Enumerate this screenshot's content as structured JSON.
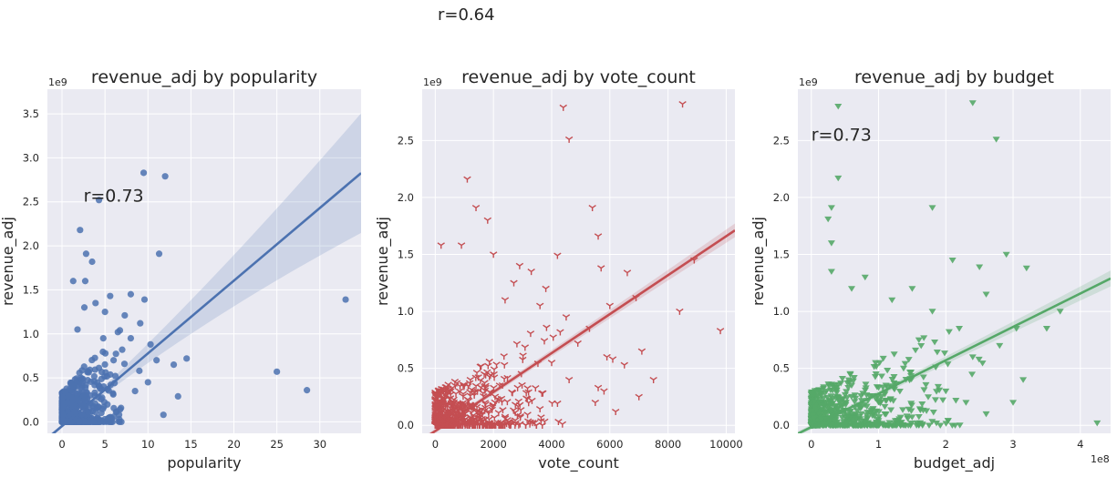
{
  "figure": {
    "suptitle": "r=0.64"
  },
  "chart_data": [
    {
      "type": "scatter",
      "title": "revenue_adj by popularity",
      "xlabel": "popularity",
      "ylabel": "revenue_adj",
      "x_offset_label": "",
      "y_offset_label": "1e9",
      "annotation": "r=0.73",
      "xlim": [
        -1.7,
        34.8
      ],
      "ylim": [
        -0.13,
        3.78
      ],
      "x_ticks": [
        0,
        5,
        10,
        15,
        20,
        25,
        30
      ],
      "y_ticks": [
        0.0,
        0.5,
        1.0,
        1.5,
        2.0,
        2.5,
        3.0,
        3.5
      ],
      "x_tick_labels": [
        "0",
        "5",
        "10",
        "15",
        "20",
        "25",
        "30"
      ],
      "y_tick_labels": [
        "0.0",
        "0.5",
        "1.0",
        "1.5",
        "2.0",
        "2.5",
        "3.0",
        "3.5"
      ],
      "marker": "circle",
      "color": "#4c72b0",
      "grid": true,
      "regression": {
        "slope": 0.0826,
        "intercept": -0.0475,
        "ci_start": 0.02,
        "ci_end": 0.68
      },
      "outliers": [
        [
          9.5,
          2.83
        ],
        [
          12.0,
          2.79
        ],
        [
          4.3,
          2.52
        ],
        [
          2.1,
          2.18
        ],
        [
          2.8,
          1.91
        ],
        [
          11.3,
          1.91
        ],
        [
          3.5,
          1.82
        ],
        [
          1.3,
          1.6
        ],
        [
          2.7,
          1.6
        ],
        [
          9.6,
          1.39
        ],
        [
          33.0,
          1.39
        ],
        [
          2.6,
          1.3
        ],
        [
          8.0,
          1.45
        ],
        [
          5.6,
          1.43
        ],
        [
          7.3,
          1.21
        ],
        [
          9.1,
          1.12
        ],
        [
          6.5,
          1.02
        ],
        [
          10.3,
          0.88
        ],
        [
          14.5,
          0.72
        ],
        [
          11.0,
          0.7
        ],
        [
          13.0,
          0.65
        ],
        [
          25.0,
          0.57
        ],
        [
          28.5,
          0.36
        ],
        [
          13.5,
          0.29
        ],
        [
          11.8,
          0.08
        ],
        [
          9.0,
          0.58
        ],
        [
          8.0,
          0.95
        ],
        [
          7.0,
          0.82
        ],
        [
          5.0,
          1.25
        ],
        [
          6.0,
          0.7
        ],
        [
          8.5,
          0.35
        ],
        [
          10.0,
          0.45
        ],
        [
          4.8,
          0.95
        ],
        [
          3.9,
          1.35
        ],
        [
          1.8,
          1.05
        ]
      ],
      "cluster": {
        "x_range": [
          0.0,
          7.5
        ],
        "x_core": 2.0,
        "y_scale": 0.35,
        "count": 650
      }
    },
    {
      "type": "scatter",
      "title": "revenue_adj by vote_count",
      "xlabel": "vote_count",
      "ylabel": "revenue_adj",
      "x_offset_label": "",
      "y_offset_label": "1e9",
      "annotation": "",
      "xlim": [
        -450,
        10300
      ],
      "ylim": [
        -0.07,
        2.95
      ],
      "x_ticks": [
        0,
        2000,
        4000,
        6000,
        8000,
        10000
      ],
      "y_ticks": [
        0.0,
        0.5,
        1.0,
        1.5,
        2.0,
        2.5
      ],
      "x_tick_labels": [
        "0",
        "2000",
        "4000",
        "6000",
        "8000",
        "10000"
      ],
      "y_tick_labels": [
        "0.0",
        "0.5",
        "1.0",
        "1.5",
        "2.0",
        "2.5"
      ],
      "marker": "tri_down",
      "color": "#c44e52",
      "grid": true,
      "regression": {
        "slope": 0.000171,
        "intercept": -0.05,
        "ci_start": 0.02,
        "ci_end": 0.06
      },
      "outliers": [
        [
          4400,
          2.79
        ],
        [
          8500,
          2.82
        ],
        [
          4600,
          2.51
        ],
        [
          1100,
          2.16
        ],
        [
          1400,
          1.91
        ],
        [
          1800,
          1.8
        ],
        [
          5400,
          1.91
        ],
        [
          5600,
          1.66
        ],
        [
          200,
          1.58
        ],
        [
          900,
          1.58
        ],
        [
          4200,
          1.49
        ],
        [
          5700,
          1.38
        ],
        [
          6600,
          1.34
        ],
        [
          8900,
          1.45
        ],
        [
          9800,
          0.83
        ],
        [
          8400,
          1.0
        ],
        [
          7500,
          0.4
        ],
        [
          7100,
          0.65
        ],
        [
          6000,
          1.05
        ],
        [
          6900,
          1.12
        ],
        [
          6500,
          0.53
        ],
        [
          5900,
          0.6
        ],
        [
          5300,
          0.85
        ],
        [
          4900,
          0.72
        ],
        [
          5600,
          0.33
        ],
        [
          5800,
          0.3
        ],
        [
          6100,
          0.58
        ],
        [
          5500,
          0.2
        ],
        [
          4500,
          0.95
        ],
        [
          3800,
          1.2
        ],
        [
          3300,
          1.35
        ],
        [
          2700,
          1.25
        ],
        [
          2400,
          1.1
        ],
        [
          3600,
          1.05
        ],
        [
          4000,
          0.55
        ],
        [
          4600,
          0.4
        ],
        [
          6200,
          0.12
        ],
        [
          7000,
          0.25
        ],
        [
          2000,
          1.5
        ],
        [
          2900,
          1.4
        ]
      ],
      "cluster": {
        "x_range": [
          0,
          4500
        ],
        "x_core": 800,
        "y_scale": 0.3,
        "count": 700
      }
    },
    {
      "type": "scatter",
      "title": "revenue_adj by budget",
      "xlabel": "budget_adj",
      "ylabel": "revenue_adj",
      "x_offset_label": "1e8",
      "y_offset_label": "1e9",
      "annotation": "r=0.73",
      "xlim": [
        -0.2,
        4.45
      ],
      "ylim": [
        -0.07,
        2.95
      ],
      "x_ticks": [
        0,
        1,
        2,
        3,
        4
      ],
      "y_ticks": [
        0.0,
        0.5,
        1.0,
        1.5,
        2.0,
        2.5
      ],
      "x_tick_labels": [
        "0",
        "1",
        "2",
        "3",
        "4"
      ],
      "y_tick_labels": [
        "0.0",
        "0.5",
        "1.0",
        "1.5",
        "2.0",
        "2.5"
      ],
      "marker": "triangle_down",
      "color": "#55a868",
      "grid": true,
      "regression": {
        "slope": 0.293,
        "intercept": -0.015,
        "ci_start": 0.02,
        "ci_end": 0.07
      },
      "outliers": [
        [
          0.4,
          2.8
        ],
        [
          2.4,
          2.83
        ],
        [
          2.75,
          2.51
        ],
        [
          0.4,
          2.17
        ],
        [
          0.3,
          1.91
        ],
        [
          0.25,
          1.81
        ],
        [
          0.3,
          1.6
        ],
        [
          1.8,
          1.91
        ],
        [
          2.1,
          1.45
        ],
        [
          0.3,
          1.35
        ],
        [
          2.5,
          1.39
        ],
        [
          2.9,
          1.5
        ],
        [
          3.2,
          1.38
        ],
        [
          3.7,
          1.0
        ],
        [
          4.25,
          0.02
        ],
        [
          3.15,
          0.4
        ],
        [
          3.05,
          0.85
        ],
        [
          2.6,
          1.15
        ],
        [
          1.8,
          1.0
        ],
        [
          2.2,
          0.85
        ],
        [
          2.8,
          0.7
        ],
        [
          2.4,
          0.6
        ],
        [
          2.0,
          0.3
        ],
        [
          1.5,
          1.2
        ],
        [
          1.2,
          1.1
        ],
        [
          0.6,
          1.2
        ],
        [
          0.8,
          1.3
        ],
        [
          1.6,
          0.75
        ],
        [
          2.3,
          0.2
        ],
        [
          2.6,
          0.1
        ],
        [
          3.5,
          0.85
        ],
        [
          3.0,
          0.2
        ]
      ],
      "cluster": {
        "x_range": [
          0.0,
          2.6
        ],
        "x_core": 0.4,
        "y_scale": 0.3,
        "count": 700
      }
    }
  ]
}
